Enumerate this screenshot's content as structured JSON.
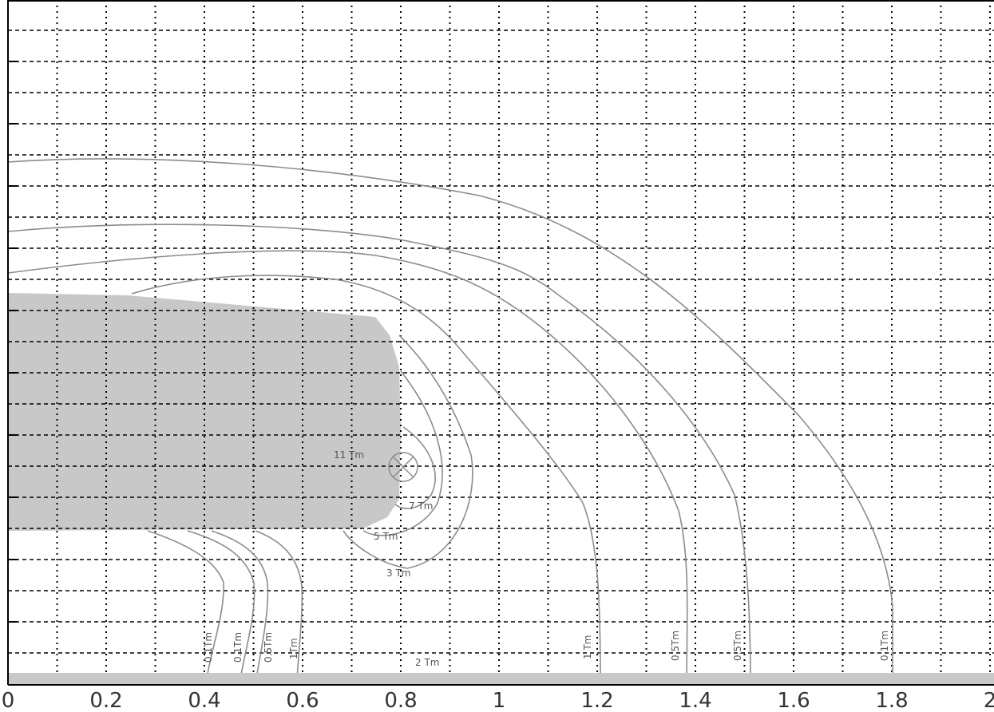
{
  "chart_data": {
    "type": "contour",
    "title": "",
    "xlabel": "",
    "ylabel": "",
    "xlim": [
      0,
      2
    ],
    "x_ticks": [
      "0",
      "0.2",
      "0.4",
      "0.6",
      "0.8",
      "1",
      "1.2",
      "1.4",
      "1.6",
      "1.8",
      "2"
    ],
    "grid": true,
    "grid_style": "dotted-vertical-dashed-horizontal",
    "shaded_region_color": "#c8c8c8",
    "contour_color": "#8c8c8c",
    "marker": "circle-with-cross",
    "contour_labels": [
      {
        "text": "11 Tm"
      },
      {
        "text": "7 Tm"
      },
      {
        "text": "5 Tm"
      },
      {
        "text": "3 Tm"
      },
      {
        "text": "2 Tm"
      },
      {
        "text": "0.1Tm"
      },
      {
        "text": "0.1Tm"
      },
      {
        "text": "0.5Tm"
      },
      {
        "text": "1Tm"
      },
      {
        "text": "1 Tm"
      },
      {
        "text": "0.5Tm"
      },
      {
        "text": "0.5Tm"
      },
      {
        "text": "0.1Tm"
      }
    ]
  }
}
